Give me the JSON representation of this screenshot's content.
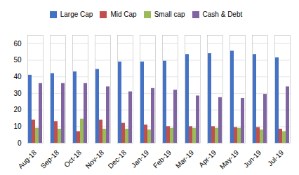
{
  "chart_data": {
    "type": "bar",
    "categories": [
      "Aug-18",
      "Sep-18",
      "Oct-18",
      "Nov-18",
      "Dec-18",
      "Jan-19",
      "Feb-19",
      "Mar-19",
      "Apr-19",
      "May-19",
      "Jun-19",
      "Jul-19"
    ],
    "series": [
      {
        "name": "Large Cap",
        "color": "#4472C4",
        "values": [
          41,
          42,
          43,
          44.5,
          49,
          49,
          49.5,
          53.5,
          54,
          55.5,
          53.5,
          51.5
        ]
      },
      {
        "name": "Mid Cap",
        "color": "#C0504D",
        "values": [
          14,
          13,
          7,
          14,
          12,
          11,
          10,
          10,
          10,
          9.5,
          9.5,
          8.5
        ]
      },
      {
        "name": "Small cap",
        "color": "#9BBB59",
        "values": [
          9,
          8.5,
          14.5,
          8.5,
          8.5,
          8,
          9,
          9,
          9,
          9,
          8,
          7
        ]
      },
      {
        "name": "Cash & Debt",
        "color": "#8064A2",
        "values": [
          36,
          36,
          36,
          34,
          31,
          33,
          32,
          28.5,
          27.5,
          27,
          29.5,
          34
        ]
      }
    ],
    "ylim": [
      0,
      65
    ],
    "yticks": [
      0,
      10,
      20,
      30,
      40,
      50,
      60
    ],
    "grid": true,
    "legend": "top"
  }
}
